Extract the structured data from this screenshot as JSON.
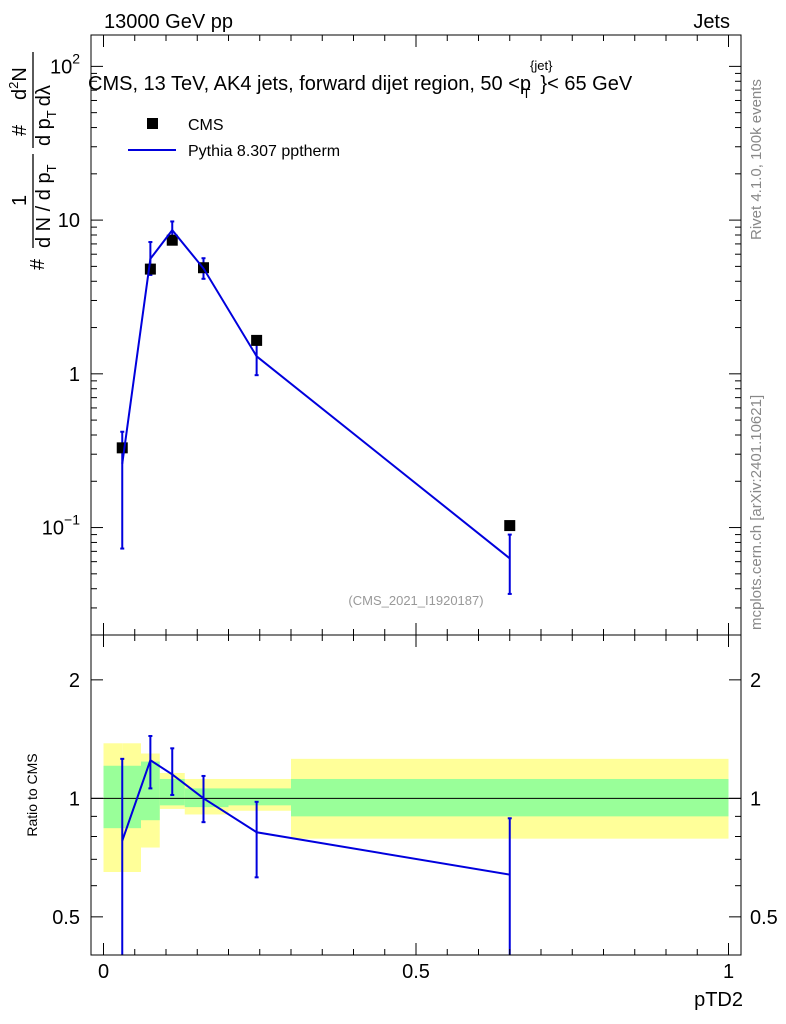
{
  "header": {
    "left": "13000 GeV pp",
    "right": "Jets"
  },
  "side_labels": {
    "rivet": "Rivet 4.1.0,  100k events",
    "mcplots": "mcplots.cern.ch [arXiv:2401.10621]"
  },
  "colors": {
    "mc_line": "#0000dd",
    "data_marker": "#000000",
    "band_inner": "#99ff99",
    "band_outer": "#ffff99"
  },
  "chart_data": [
    {
      "type": "scatter",
      "role": "main",
      "title_parts": [
        "CMS, 13 TeV, AK4 jets, forward dijet region, 50 <p",
        "{jet}",
        "T",
        "}< 65 GeV"
      ],
      "ylabel_parts": [
        "1",
        "d N / d p",
        "T",
        "#",
        "d",
        "2",
        "N",
        "d p",
        "T",
        "d",
        "λ",
        "#"
      ],
      "watermark": "(CMS_2021_I1920187)",
      "yscale": "log",
      "xlim": [
        -0.02,
        1.02
      ],
      "ylim": [
        0.02,
        160
      ],
      "yticks": [
        {
          "value": 100,
          "base": "10",
          "exp": "2"
        },
        {
          "value": 10,
          "base": "10",
          "exp": ""
        },
        {
          "value": 1,
          "base": "1",
          "exp": ""
        },
        {
          "value": 0.1,
          "base": "10",
          "exp": "−1"
        }
      ],
      "legend": [
        {
          "kind": "marker",
          "label": "CMS"
        },
        {
          "kind": "line",
          "label": "Pythia 8.307 pptherm"
        }
      ],
      "data_series": {
        "name": "CMS",
        "x": [
          0.03,
          0.075,
          0.11,
          0.16,
          0.245,
          0.65
        ],
        "y": [
          0.33,
          4.8,
          7.4,
          4.9,
          1.65,
          0.103
        ]
      },
      "mc_series": {
        "name": "Pythia 8.307 pptherm",
        "x": [
          0.03,
          0.075,
          0.11,
          0.16,
          0.245,
          0.65
        ],
        "y": [
          0.26,
          5.6,
          8.6,
          4.85,
          1.3,
          0.063
        ],
        "err_lo": [
          0.073,
          4.4,
          7.5,
          4.15,
          0.98,
          0.037
        ],
        "err_hi": [
          0.42,
          7.2,
          9.8,
          5.65,
          1.67,
          0.09
        ]
      }
    },
    {
      "type": "line",
      "role": "ratio",
      "ylabel": "Ratio to CMS",
      "xlabel": "pTD2",
      "yscale": "log",
      "xlim": [
        -0.02,
        1.02
      ],
      "ylim": [
        0.4,
        2.6
      ],
      "yticks": [
        {
          "value": 2,
          "label": "2"
        },
        {
          "value": 1,
          "label": "1"
        },
        {
          "value": 0.5,
          "label": "0.5"
        }
      ],
      "xticks": [
        {
          "value": 0,
          "label": "0"
        },
        {
          "value": 0.5,
          "label": "0.5"
        },
        {
          "value": 1,
          "label": "1"
        }
      ],
      "bands": [
        {
          "x0": 0.0,
          "x1": 0.03,
          "inner": [
            0.84,
            1.21
          ],
          "outer": [
            0.65,
            1.38
          ]
        },
        {
          "x0": 0.03,
          "x1": 0.06,
          "inner": [
            0.84,
            1.21
          ],
          "outer": [
            0.65,
            1.38
          ]
        },
        {
          "x0": 0.06,
          "x1": 0.09,
          "inner": [
            0.88,
            1.24
          ],
          "outer": [
            0.75,
            1.3
          ]
        },
        {
          "x0": 0.09,
          "x1": 0.13,
          "inner": [
            0.96,
            1.12
          ],
          "outer": [
            0.94,
            1.16
          ]
        },
        {
          "x0": 0.13,
          "x1": 0.2,
          "inner": [
            0.95,
            1.06
          ],
          "outer": [
            0.91,
            1.12
          ]
        },
        {
          "x0": 0.2,
          "x1": 0.3,
          "inner": [
            0.96,
            1.06
          ],
          "outer": [
            0.93,
            1.12
          ]
        },
        {
          "x0": 0.3,
          "x1": 1.0,
          "inner": [
            0.9,
            1.12
          ],
          "outer": [
            0.79,
            1.26
          ]
        }
      ],
      "ratio_series": {
        "name": "Pythia 8.307 pptherm / CMS",
        "x": [
          0.03,
          0.075,
          0.11,
          0.16,
          0.245,
          0.65
        ],
        "y": [
          0.78,
          1.25,
          1.15,
          1.0,
          0.82,
          0.64
        ],
        "err_lo": [
          0.3,
          1.06,
          1.02,
          0.87,
          0.63,
          0.3
        ],
        "err_hi": [
          1.26,
          1.44,
          1.34,
          1.14,
          0.98,
          0.89
        ]
      }
    }
  ]
}
